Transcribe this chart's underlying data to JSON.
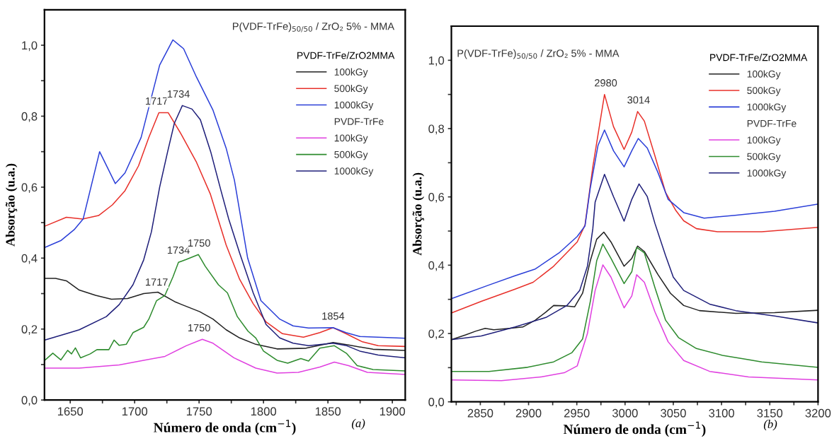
{
  "chart_data": [
    {
      "type": "line",
      "title": "P(VDF-TrFe)$_{50/50}$ / ZrO₂ 5% - MMA",
      "xlabel": "Número de onda (cm$^{−1}$)",
      "ylabel": "Absorção (u.a.)",
      "legend_title": "PVDF-TrFe/ZrO2MMA",
      "legend": "top right",
      "grid": false,
      "xlim": [
        1630,
        1910
      ],
      "ylim": [
        0,
        1.1
      ],
      "xticks": [
        1650,
        {
          "value": 1675,
          "label": null
        },
        1700,
        {
          "value": 1725,
          "label": null
        },
        1750,
        {
          "value": 1775,
          "label": null
        },
        1800,
        {
          "value": 1825,
          "label": null
        },
        1850,
        {
          "value": 1875,
          "label": null
        },
        1900
      ],
      "yticks": [
        {
          "value": 0,
          "label": "0,0"
        },
        {
          "value": 0.1,
          "label": null
        },
        {
          "value": 0.2,
          "label": "0,2"
        },
        {
          "value": 0.3,
          "label": null
        },
        {
          "value": 0.4,
          "label": "0,4"
        },
        {
          "value": 0.5,
          "label": null
        },
        {
          "value": 0.6,
          "label": "0,6"
        },
        {
          "value": 0.7,
          "label": null
        },
        {
          "value": 0.8,
          "label": "0,8"
        },
        {
          "value": 0.9,
          "label": null
        },
        {
          "value": 1.0,
          "label": "1,0"
        }
      ],
      "series": [
        {
          "name": "100kGy",
          "color": "#222222",
          "x": [
            1630.3,
            1638.6,
            1647,
            1657,
            1669.7,
            1682,
            1694.5,
            1707,
            1718,
            1731.8,
            1750.5,
            1760.8,
            1771,
            1781.5,
            1794,
            1810.5,
            1833,
            1854,
            1866,
            1885,
            1910
          ],
          "values": [
            0.343,
            0.343,
            0.336,
            0.31,
            0.295,
            0.284,
            0.286,
            0.3,
            0.304,
            0.276,
            0.249,
            0.228,
            0.198,
            0.175,
            0.157,
            0.144,
            0.146,
            0.162,
            0.155,
            0.143,
            0.14
          ]
        },
        {
          "name": "500kGy",
          "color": "#e8302a",
          "x": [
            1630.3,
            1647,
            1659.6,
            1672,
            1682.7,
            1692.5,
            1703,
            1711,
            1718.8,
            1726,
            1736,
            1748,
            1758.8,
            1771,
            1781.5,
            1791.9,
            1802,
            1814.7,
            1831,
            1843.7,
            1854,
            1864,
            1876.8,
            1889,
            1910
          ],
          "values": [
            0.49,
            0.515,
            0.51,
            0.52,
            0.55,
            0.59,
            0.66,
            0.74,
            0.81,
            0.81,
            0.75,
            0.67,
            0.58,
            0.437,
            0.34,
            0.272,
            0.22,
            0.187,
            0.177,
            0.19,
            0.204,
            0.187,
            0.164,
            0.153,
            0.151
          ]
        },
        {
          "name": "1000kGy",
          "color": "#2b3fd8",
          "x": [
            1630.3,
            1643,
            1653,
            1660,
            1672.8,
            1685,
            1692.5,
            1705,
            1719.4,
            1729.7,
            1738,
            1748,
            1760.8,
            1771,
            1777.4,
            1787.7,
            1798,
            1812.6,
            1823,
            1835,
            1854,
            1864,
            1874.7,
            1910
          ],
          "values": [
            0.43,
            0.45,
            0.48,
            0.51,
            0.7,
            0.61,
            0.64,
            0.74,
            0.944,
            1.015,
            0.99,
            0.91,
            0.817,
            0.71,
            0.62,
            0.4,
            0.28,
            0.228,
            0.209,
            0.203,
            0.204,
            0.19,
            0.179,
            0.174
          ]
        },
        {
          "name": "100kGy",
          "color": "#e040e0",
          "x": [
            1630.3,
            1657,
            1688,
            1707,
            1723.5,
            1740,
            1752.5,
            1760.8,
            1777,
            1794,
            1810.5,
            1827,
            1843.7,
            1855,
            1866,
            1880.6,
            1910
          ],
          "values": [
            0.09,
            0.09,
            0.099,
            0.112,
            0.123,
            0.153,
            0.171,
            0.16,
            0.119,
            0.09,
            0.076,
            0.078,
            0.093,
            0.107,
            0.097,
            0.078,
            0.072
          ]
        },
        {
          "name": "500kGy",
          "color": "#2e8b2e",
          "x": [
            1630.3,
            1636.5,
            1642.7,
            1648,
            1651,
            1654,
            1658,
            1665.5,
            1670.7,
            1680,
            1684,
            1688,
            1693.5,
            1698.7,
            1707,
            1711,
            1717,
            1723.5,
            1729.7,
            1734,
            1740,
            1749.5,
            1754.8,
            1765,
            1772,
            1779.7,
            1788,
            1794,
            1800,
            1810.5,
            1818.8,
            1829,
            1835,
            1843.7,
            1855,
            1864.6,
            1872.7,
            1885,
            1910
          ],
          "values": [
            0.112,
            0.132,
            0.113,
            0.14,
            0.13,
            0.147,
            0.119,
            0.13,
            0.142,
            0.142,
            0.169,
            0.154,
            0.157,
            0.19,
            0.205,
            0.228,
            0.28,
            0.295,
            0.347,
            0.388,
            0.396,
            0.41,
            0.377,
            0.325,
            0.302,
            0.235,
            0.194,
            0.175,
            0.138,
            0.112,
            0.104,
            0.117,
            0.11,
            0.146,
            0.153,
            0.131,
            0.097,
            0.086,
            0.082
          ]
        },
        {
          "name": "1000kGy",
          "color": "#1f1f7a",
          "x": [
            1630.3,
            1647,
            1657,
            1678,
            1688,
            1698.7,
            1707,
            1713,
            1719.4,
            1725.6,
            1730.8,
            1737,
            1744.5,
            1751,
            1759,
            1767,
            1773,
            1781.5,
            1792,
            1802,
            1812.6,
            1823,
            1835,
            1854,
            1864.6,
            1874.7,
            1889,
            1910
          ],
          "values": [
            0.169,
            0.187,
            0.198,
            0.235,
            0.269,
            0.325,
            0.395,
            0.474,
            0.6,
            0.7,
            0.78,
            0.83,
            0.82,
            0.79,
            0.7,
            0.59,
            0.51,
            0.414,
            0.302,
            0.213,
            0.175,
            0.16,
            0.153,
            0.16,
            0.153,
            0.138,
            0.127,
            0.119
          ]
        }
      ],
      "annotations": [
        "PVDF-TrFe",
        "(a)",
        {
          "text": "1717",
          "x": 1717,
          "y": 0.81
        },
        {
          "text": "1734",
          "x": 1734,
          "y": 0.83
        },
        {
          "text": "1734",
          "x": 1734,
          "y": 0.39
        },
        {
          "text": "1750",
          "x": 1750,
          "y": 0.41
        },
        {
          "text": "1717",
          "x": 1717,
          "y": 0.3
        },
        {
          "text": "1750",
          "x": 1750,
          "y": 0.171
        },
        {
          "text": "1854",
          "x": 1854,
          "y": 0.204
        }
      ]
    },
    {
      "type": "line",
      "title": "P(VDF-TrFe)$_{50/50}$ / ZrO₂ 5% - MMA",
      "xlabel": "Número de onda (cm$^{−1}$)",
      "ylabel": "Absorção (u.a.)",
      "legend_title": "PVDF-TrFe/ZrO2MMA",
      "legend": "top right",
      "grid": false,
      "xlim": [
        2820,
        3200
      ],
      "ylim": [
        0,
        1.1
      ],
      "xticks": [
        {
          "value": 2825,
          "label": null
        },
        2850,
        {
          "value": 2875,
          "label": null
        },
        2900,
        {
          "value": 2925,
          "label": null
        },
        2950,
        {
          "value": 2975,
          "label": null
        },
        3000,
        {
          "value": 3025,
          "label": null
        },
        3050,
        {
          "value": 3075,
          "label": null
        },
        3100,
        {
          "value": 3125,
          "label": null
        },
        3150,
        {
          "value": 3175,
          "label": null
        },
        3200
      ],
      "yticks": [
        {
          "value": 0,
          "label": "0,0"
        },
        {
          "value": 0.1,
          "label": null
        },
        {
          "value": 0.2,
          "label": "0,2"
        },
        {
          "value": 0.3,
          "label": null
        },
        {
          "value": 0.4,
          "label": "0,4"
        },
        {
          "value": 0.5,
          "label": null
        },
        {
          "value": 0.6,
          "label": "0,6"
        },
        {
          "value": 0.7,
          "label": null
        },
        {
          "value": 0.8,
          "label": "0,8"
        },
        {
          "value": 0.9,
          "label": null
        },
        {
          "value": 1.0,
          "label": "1,0"
        }
      ],
      "series": [
        {
          "name": "100kGy",
          "color": "#222222",
          "x": [
            2820,
            2834.7,
            2845.4,
            2855,
            2864,
            2880,
            2894,
            2907,
            2918,
            2926,
            2937,
            2947.7,
            2956,
            2964,
            2970.6,
            2978,
            2985.4,
            2999,
            3007,
            3013,
            3020,
            3034,
            3047,
            3060.8,
            3077,
            3114.7,
            3155,
            3200
          ],
          "values": [
            0.182,
            0.196,
            0.207,
            0.215,
            0.211,
            0.215,
            0.219,
            0.239,
            0.263,
            0.282,
            0.281,
            0.278,
            0.318,
            0.413,
            0.476,
            0.497,
            0.468,
            0.397,
            0.42,
            0.456,
            0.44,
            0.373,
            0.318,
            0.282,
            0.267,
            0.259,
            0.261,
            0.268
          ]
        },
        {
          "name": "500kGy",
          "color": "#e8302a",
          "x": [
            2820,
            2851,
            2886,
            2904.7,
            2926,
            2950.4,
            2958.5,
            2966.6,
            2978.7,
            2988,
            2999,
            3007,
            3013,
            3020,
            3031,
            3042,
            3052.7,
            3060.8,
            3074,
            3095.8,
            3141.6,
            3200
          ],
          "values": [
            0.26,
            0.294,
            0.33,
            0.35,
            0.397,
            0.468,
            0.518,
            0.688,
            0.9,
            0.806,
            0.739,
            0.79,
            0.85,
            0.822,
            0.72,
            0.613,
            0.56,
            0.53,
            0.507,
            0.498,
            0.498,
            0.511
          ]
        },
        {
          "name": "1000kGy",
          "color": "#2b3fd8",
          "x": [
            2820,
            2859,
            2886,
            2907,
            2931.6,
            2950.4,
            2958.5,
            2963.9,
            2972,
            2978.7,
            2988,
            2999,
            3007,
            3013.7,
            3023,
            3034,
            3044.6,
            3060.8,
            3082,
            3114,
            3155,
            3200
          ],
          "values": [
            0.302,
            0.342,
            0.369,
            0.389,
            0.436,
            0.484,
            0.515,
            0.625,
            0.751,
            0.796,
            0.735,
            0.688,
            0.735,
            0.771,
            0.743,
            0.672,
            0.593,
            0.554,
            0.538,
            0.546,
            0.558,
            0.579
          ]
        },
        {
          "name": "100kGy",
          "color": "#e040e0",
          "x": [
            2820,
            2872,
            2913,
            2937,
            2950.4,
            2961,
            2969,
            2977,
            2985.4,
            2999,
            3007,
            3012,
            3020,
            3031,
            3044.6,
            3060.8,
            3087.7,
            3128,
            3200
          ],
          "values": [
            0.064,
            0.062,
            0.073,
            0.085,
            0.105,
            0.2,
            0.326,
            0.401,
            0.365,
            0.275,
            0.31,
            0.372,
            0.35,
            0.263,
            0.176,
            0.121,
            0.089,
            0.073,
            0.064
          ]
        },
        {
          "name": "500kGy",
          "color": "#2e8b2e",
          "x": [
            2820,
            2859,
            2899,
            2926,
            2945,
            2956,
            2964,
            2970.6,
            2977,
            2985.4,
            2999,
            3007,
            3012,
            3020,
            3031,
            3042,
            3055.4,
            3074,
            3101,
            3141.6,
            3200
          ],
          "values": [
            0.089,
            0.089,
            0.101,
            0.117,
            0.144,
            0.184,
            0.294,
            0.413,
            0.462,
            0.42,
            0.346,
            0.381,
            0.452,
            0.436,
            0.334,
            0.239,
            0.188,
            0.156,
            0.136,
            0.117,
            0.101
          ]
        },
        {
          "name": "1000kGy",
          "color": "#1f1f7a",
          "x": [
            2820,
            2851,
            2886,
            2918,
            2939.7,
            2953,
            2961,
            2966.6,
            2969,
            2978.7,
            2988,
            2999,
            3007,
            3014.5,
            3023,
            3031,
            3042,
            3050,
            3060.8,
            3087.7,
            3114.7,
            3155,
            3200
          ],
          "values": [
            0.182,
            0.193,
            0.219,
            0.247,
            0.282,
            0.326,
            0.397,
            0.507,
            0.585,
            0.666,
            0.601,
            0.529,
            0.593,
            0.638,
            0.601,
            0.522,
            0.428,
            0.365,
            0.326,
            0.286,
            0.267,
            0.251,
            0.231
          ]
        }
      ],
      "annotations": [
        "PVDF-TrFe",
        "(b)",
        {
          "text": "2980",
          "x": 2980,
          "y": 0.9
        },
        {
          "text": "3014",
          "x": 3014,
          "y": 0.85
        }
      ]
    }
  ]
}
